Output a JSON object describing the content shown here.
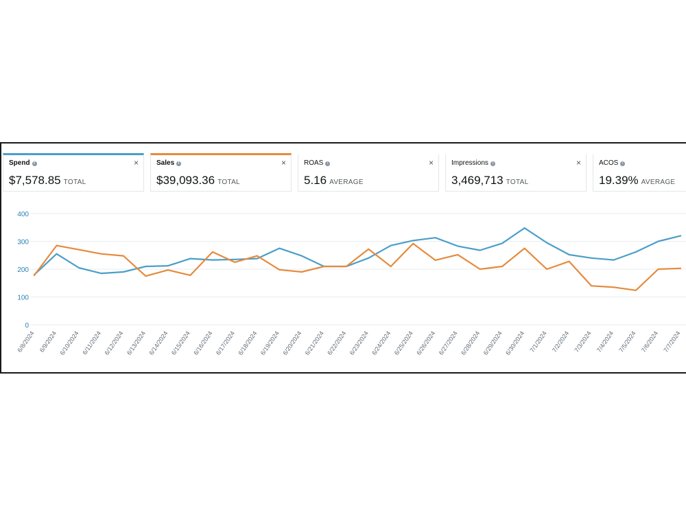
{
  "metrics": [
    {
      "label": "Spend",
      "value": "$7,578.85",
      "unit": "TOTAL",
      "color": "#4a9ec9",
      "active": true
    },
    {
      "label": "Sales",
      "value": "$39,093.36",
      "unit": "TOTAL",
      "color": "#e68a3c",
      "active": true
    },
    {
      "label": "ROAS",
      "value": "5.16",
      "unit": "AVERAGE",
      "color": "",
      "active": false
    },
    {
      "label": "Impressions",
      "value": "3,469,713",
      "unit": "TOTAL",
      "color": "",
      "active": false
    },
    {
      "label": "ACOS",
      "value": "19.39%",
      "unit": "AVERAGE",
      "color": "",
      "active": false
    }
  ],
  "icons": {
    "info": "info-icon",
    "close": "close-icon"
  },
  "close_glyph": "×",
  "info_glyph": "i",
  "chart_data": {
    "type": "line",
    "x": [
      "6/8/2024",
      "6/9/2024",
      "6/10/2024",
      "6/11/2024",
      "6/12/2024",
      "6/13/2024",
      "6/14/2024",
      "6/15/2024",
      "6/16/2024",
      "6/17/2024",
      "6/18/2024",
      "6/19/2024",
      "6/20/2024",
      "6/21/2024",
      "6/22/2024",
      "6/23/2024",
      "6/24/2024",
      "6/25/2024",
      "6/26/2024",
      "6/27/2024",
      "6/28/2024",
      "6/29/2024",
      "6/30/2024",
      "7/1/2024",
      "7/2/2024",
      "7/3/2024",
      "7/4/2024",
      "7/5/2024",
      "7/6/2024",
      "7/7/2024"
    ],
    "series": [
      {
        "color": "#4a9ec9",
        "values": [
          180,
          255,
          205,
          185,
          190,
          210,
          212,
          238,
          233,
          235,
          238,
          275,
          248,
          210,
          210,
          240,
          285,
          303,
          313,
          283,
          268,
          293,
          348,
          295,
          252,
          240,
          233,
          262,
          300,
          320
        ]
      },
      {
        "color": "#e68a3c",
        "values": [
          178,
          285,
          270,
          255,
          248,
          175,
          197,
          178,
          262,
          225,
          248,
          198,
          190,
          210,
          210,
          272,
          210,
          292,
          232,
          252,
          200,
          210,
          275,
          200,
          228,
          140,
          135,
          124,
          200,
          203
        ]
      }
    ],
    "yticks": [
      0,
      100,
      200,
      300,
      400
    ],
    "ylim": [
      0,
      400
    ],
    "grid": true,
    "ytick_color": "#2a7fb0",
    "xtick_color": "#5f6b76"
  }
}
